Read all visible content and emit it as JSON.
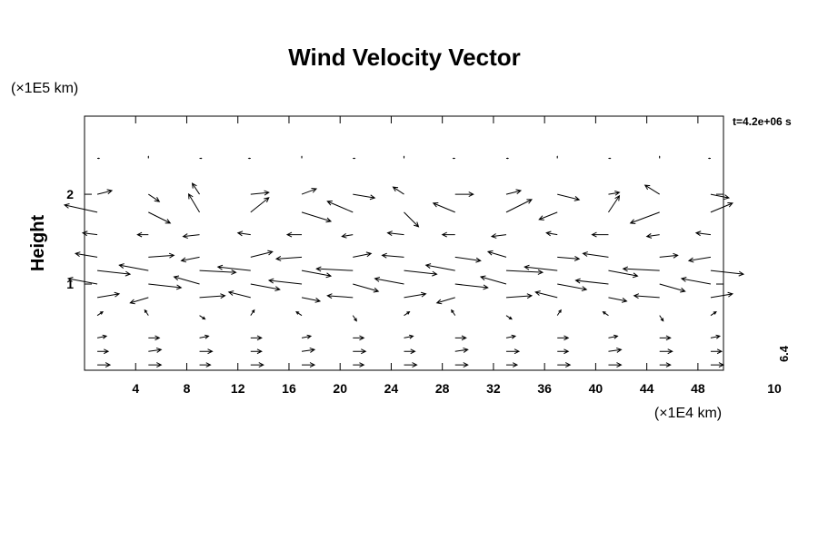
{
  "chart_data": {
    "type": "quiver",
    "title": "Wind Velocity Vector",
    "y_label": "Height",
    "y_unit": "(×1E5 km)",
    "x_unit": "(×1E4 km)",
    "time_label": "t=4.2e+06 s",
    "scale_label": "6.4",
    "scale_sublabel": "10",
    "xlim": [
      0,
      50
    ],
    "ylim": [
      0.04,
      2.87
    ],
    "xticks": [
      4,
      8,
      12,
      16,
      20,
      24,
      28,
      32,
      36,
      40,
      44,
      48
    ],
    "yticks": [
      1,
      2
    ],
    "color": "#000000",
    "x": [
      1,
      5,
      9,
      13,
      17,
      21,
      25,
      29,
      33,
      37,
      41,
      45,
      49
    ],
    "rows": [
      {
        "y": 0.1,
        "u": [
          7,
          7,
          6,
          7,
          7,
          6,
          7,
          7,
          6,
          7,
          7,
          6,
          7
        ],
        "v": [
          0,
          0,
          0,
          0,
          0,
          0,
          0,
          0,
          0,
          0,
          0,
          0,
          0
        ]
      },
      {
        "y": 0.25,
        "u": [
          6,
          7,
          7,
          6,
          7,
          7,
          6,
          7,
          7,
          6,
          7,
          7,
          6
        ],
        "v": [
          0,
          1,
          0,
          0,
          1,
          0,
          0,
          1,
          0,
          0,
          1,
          0,
          0
        ]
      },
      {
        "y": 0.4,
        "u": [
          5,
          6,
          5,
          6,
          5,
          6,
          5,
          6,
          5,
          6,
          5,
          6,
          5
        ],
        "v": [
          1,
          0,
          1,
          0,
          1,
          0,
          1,
          0,
          1,
          0,
          1,
          0,
          1
        ]
      },
      {
        "y": 0.65,
        "u": [
          3,
          -2,
          3,
          2,
          -3,
          2,
          3,
          -2,
          3,
          2,
          -3,
          2,
          3
        ],
        "v": [
          2,
          3,
          -2,
          3,
          2,
          -3,
          2,
          3,
          -2,
          3,
          2,
          -3,
          2
        ]
      },
      {
        "y": 0.85,
        "u": [
          12,
          -10,
          14,
          -12,
          10,
          -14,
          12,
          -10,
          14,
          -12,
          10,
          -14,
          12
        ],
        "v": [
          2,
          -3,
          1,
          3,
          -2,
          1,
          2,
          -3,
          1,
          3,
          -2,
          1,
          2
        ]
      },
      {
        "y": 1.0,
        "u": [
          -16,
          18,
          -14,
          16,
          -18,
          14,
          -16,
          18,
          -14,
          16,
          -18,
          14,
          -16
        ],
        "v": [
          3,
          -2,
          4,
          -3,
          2,
          -4,
          3,
          -2,
          4,
          -3,
          2,
          -4,
          3
        ]
      },
      {
        "y": 1.15,
        "u": [
          18,
          -16,
          20,
          -18,
          16,
          -20,
          18,
          -16,
          20,
          -18,
          16,
          -20,
          18
        ],
        "v": [
          -2,
          3,
          -1,
          2,
          -3,
          1,
          -2,
          3,
          -1,
          2,
          -3,
          1,
          -2
        ]
      },
      {
        "y": 1.3,
        "u": [
          -12,
          14,
          -10,
          12,
          -14,
          10,
          -12,
          14,
          -10,
          12,
          -14,
          10,
          -12
        ],
        "v": [
          2,
          1,
          -2,
          3,
          -1,
          2,
          1,
          -2,
          3,
          -1,
          2,
          1,
          -2
        ]
      },
      {
        "y": 1.55,
        "u": [
          -8,
          -6,
          -9,
          -7,
          -8,
          -6,
          -9,
          -7,
          -8,
          -6,
          -9,
          -7,
          -8
        ],
        "v": [
          1,
          0,
          -1,
          1,
          0,
          -1,
          1,
          0,
          -1,
          1,
          0,
          -1,
          1
        ]
      },
      {
        "y": 1.8,
        "u": [
          -18,
          12,
          -6,
          10,
          16,
          -14,
          8,
          -12,
          14,
          -10,
          6,
          -16,
          12
        ],
        "v": [
          4,
          -6,
          10,
          8,
          -5,
          6,
          -8,
          5,
          7,
          -4,
          9,
          -6,
          5
        ]
      },
      {
        "y": 2.0,
        "u": [
          8,
          6,
          -4,
          10,
          8,
          12,
          -6,
          10,
          8,
          12,
          6,
          -8,
          10
        ],
        "v": [
          2,
          -4,
          6,
          1,
          3,
          -2,
          4,
          0,
          2,
          -3,
          1,
          5,
          -2
        ]
      },
      {
        "y": 2.4,
        "u": [
          1,
          0,
          1,
          -1,
          0,
          1,
          0,
          -1,
          1,
          0,
          1,
          0,
          -1
        ],
        "v": [
          0,
          1,
          0,
          0,
          1,
          0,
          1,
          0,
          0,
          1,
          0,
          1,
          0
        ]
      }
    ]
  }
}
